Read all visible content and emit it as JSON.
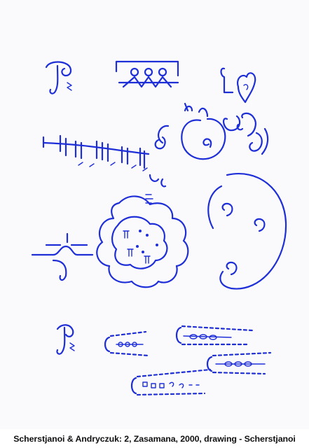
{
  "caption": "Scherstjanoi & Andryczuk: 2, Zasamana, 2000, drawing - Scherstjanoi",
  "colors": {
    "ink": "#1f2fd8",
    "paper": "#fafafc",
    "caption_text": "#111111"
  }
}
